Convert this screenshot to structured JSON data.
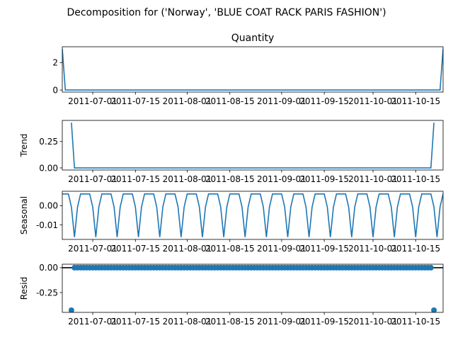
{
  "chart_data": {
    "suptitle": "Decomposition for ('Norway', 'BLUE COAT RACK PARIS FASHION')",
    "x_ticks": [
      "2011-07-01",
      "2011-07-15",
      "2011-08-01",
      "2011-08-15",
      "2011-09-01",
      "2011-09-15",
      "2011-10-01",
      "2011-10-15"
    ],
    "x_range": [
      "2011-06-21",
      "2011-10-24"
    ],
    "panels": [
      {
        "type": "line",
        "title": "Quantity",
        "ylabel": "",
        "ylim": [
          -0.15,
          3.15
        ],
        "yticks": [
          0,
          2
        ],
        "x": [
          "2011-06-21",
          "2011-06-22",
          "2011-10-23",
          "2011-10-24"
        ],
        "values": [
          3,
          0,
          0,
          3
        ]
      },
      {
        "type": "line",
        "title": "",
        "ylabel": "Trend",
        "ylim": [
          -0.02,
          0.45
        ],
        "yticks": [
          0.0,
          0.25
        ],
        "x": [
          "2011-06-24",
          "2011-06-25",
          "2011-10-20",
          "2011-10-21"
        ],
        "values": [
          0.4286,
          0,
          0,
          0.4286
        ]
      },
      {
        "type": "line",
        "title": "",
        "ylabel": "Seasonal",
        "ylim": [
          -0.0175,
          0.0075
        ],
        "yticks": [
          0.0,
          -0.01
        ],
        "period_days": 7,
        "weekly_pattern": [
          0.0061,
          0.0061,
          0.0061,
          -0.0007,
          -0.0163,
          -0.0007,
          0.0061
        ]
      },
      {
        "type": "scatter",
        "title": "",
        "ylabel": "Resid",
        "ylim": [
          -0.45,
          0.035
        ],
        "yticks": [
          0.0,
          -0.25
        ],
        "baseline": 0,
        "x_start": "2011-06-24",
        "x_end": "2011-10-21",
        "default_value": 0,
        "outliers": [
          {
            "x": "2011-06-24",
            "y": -0.4286
          },
          {
            "x": "2011-10-21",
            "y": -0.4286
          }
        ]
      }
    ],
    "color": "#1f77b4"
  }
}
